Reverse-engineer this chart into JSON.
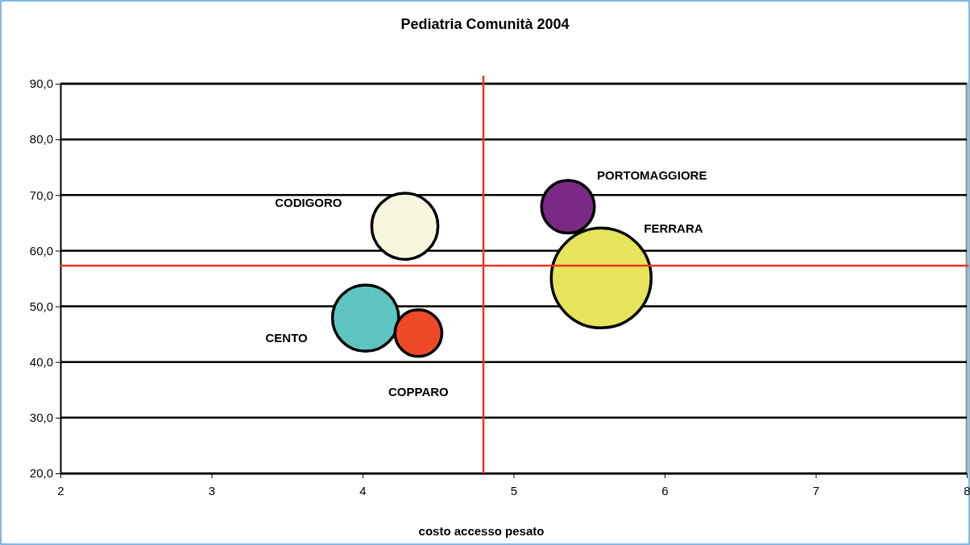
{
  "chart_data": {
    "type": "bubble",
    "title": "Pediatria Comunità 2004",
    "xlabel": "costo accesso pesato",
    "xlim": [
      2,
      8
    ],
    "xticks": [
      2,
      3,
      4,
      5,
      6,
      7,
      8
    ],
    "ylim": [
      20,
      90
    ],
    "yticks": [
      {
        "value": 20,
        "label": "20,0"
      },
      {
        "value": 30,
        "label": "30,0"
      },
      {
        "value": 40,
        "label": "40,0"
      },
      {
        "value": 50,
        "label": "50,0"
      },
      {
        "value": 60,
        "label": "60,0"
      },
      {
        "value": 70,
        "label": "70,0"
      },
      {
        "value": 80,
        "label": "80,0"
      },
      {
        "value": 90,
        "label": "90,0"
      }
    ],
    "grid": "y",
    "legend": false,
    "series": [
      {
        "name": "CODIGORO",
        "color": "#f7f7e0",
        "x": [
          4.28
        ],
        "values": [
          64.4
        ],
        "sizes": [
          0.44
        ]
      },
      {
        "name": "PORTOMAGGIORE",
        "color": "#7b2a84",
        "x": [
          5.36
        ],
        "values": [
          67.9
        ],
        "sizes": [
          0.28
        ]
      },
      {
        "name": "FERRARA",
        "color": "#e6e45a",
        "x": [
          5.58
        ],
        "values": [
          55.1
        ],
        "sizes": [
          1
        ]
      },
      {
        "name": "CENTO",
        "color": "#5ec4bf",
        "x": [
          4.02
        ],
        "values": [
          47.9
        ],
        "sizes": [
          0.44
        ]
      },
      {
        "name": "COPPARO",
        "color": "#ee4a2a",
        "x": [
          4.37
        ],
        "values": [
          45.2
        ],
        "sizes": [
          0.22
        ]
      }
    ],
    "ref_lines": [
      {
        "axis": "x",
        "value": 4.8,
        "color": "#ee3322"
      },
      {
        "axis": "y",
        "value": 57.3,
        "color": "#ee3322"
      }
    ]
  }
}
